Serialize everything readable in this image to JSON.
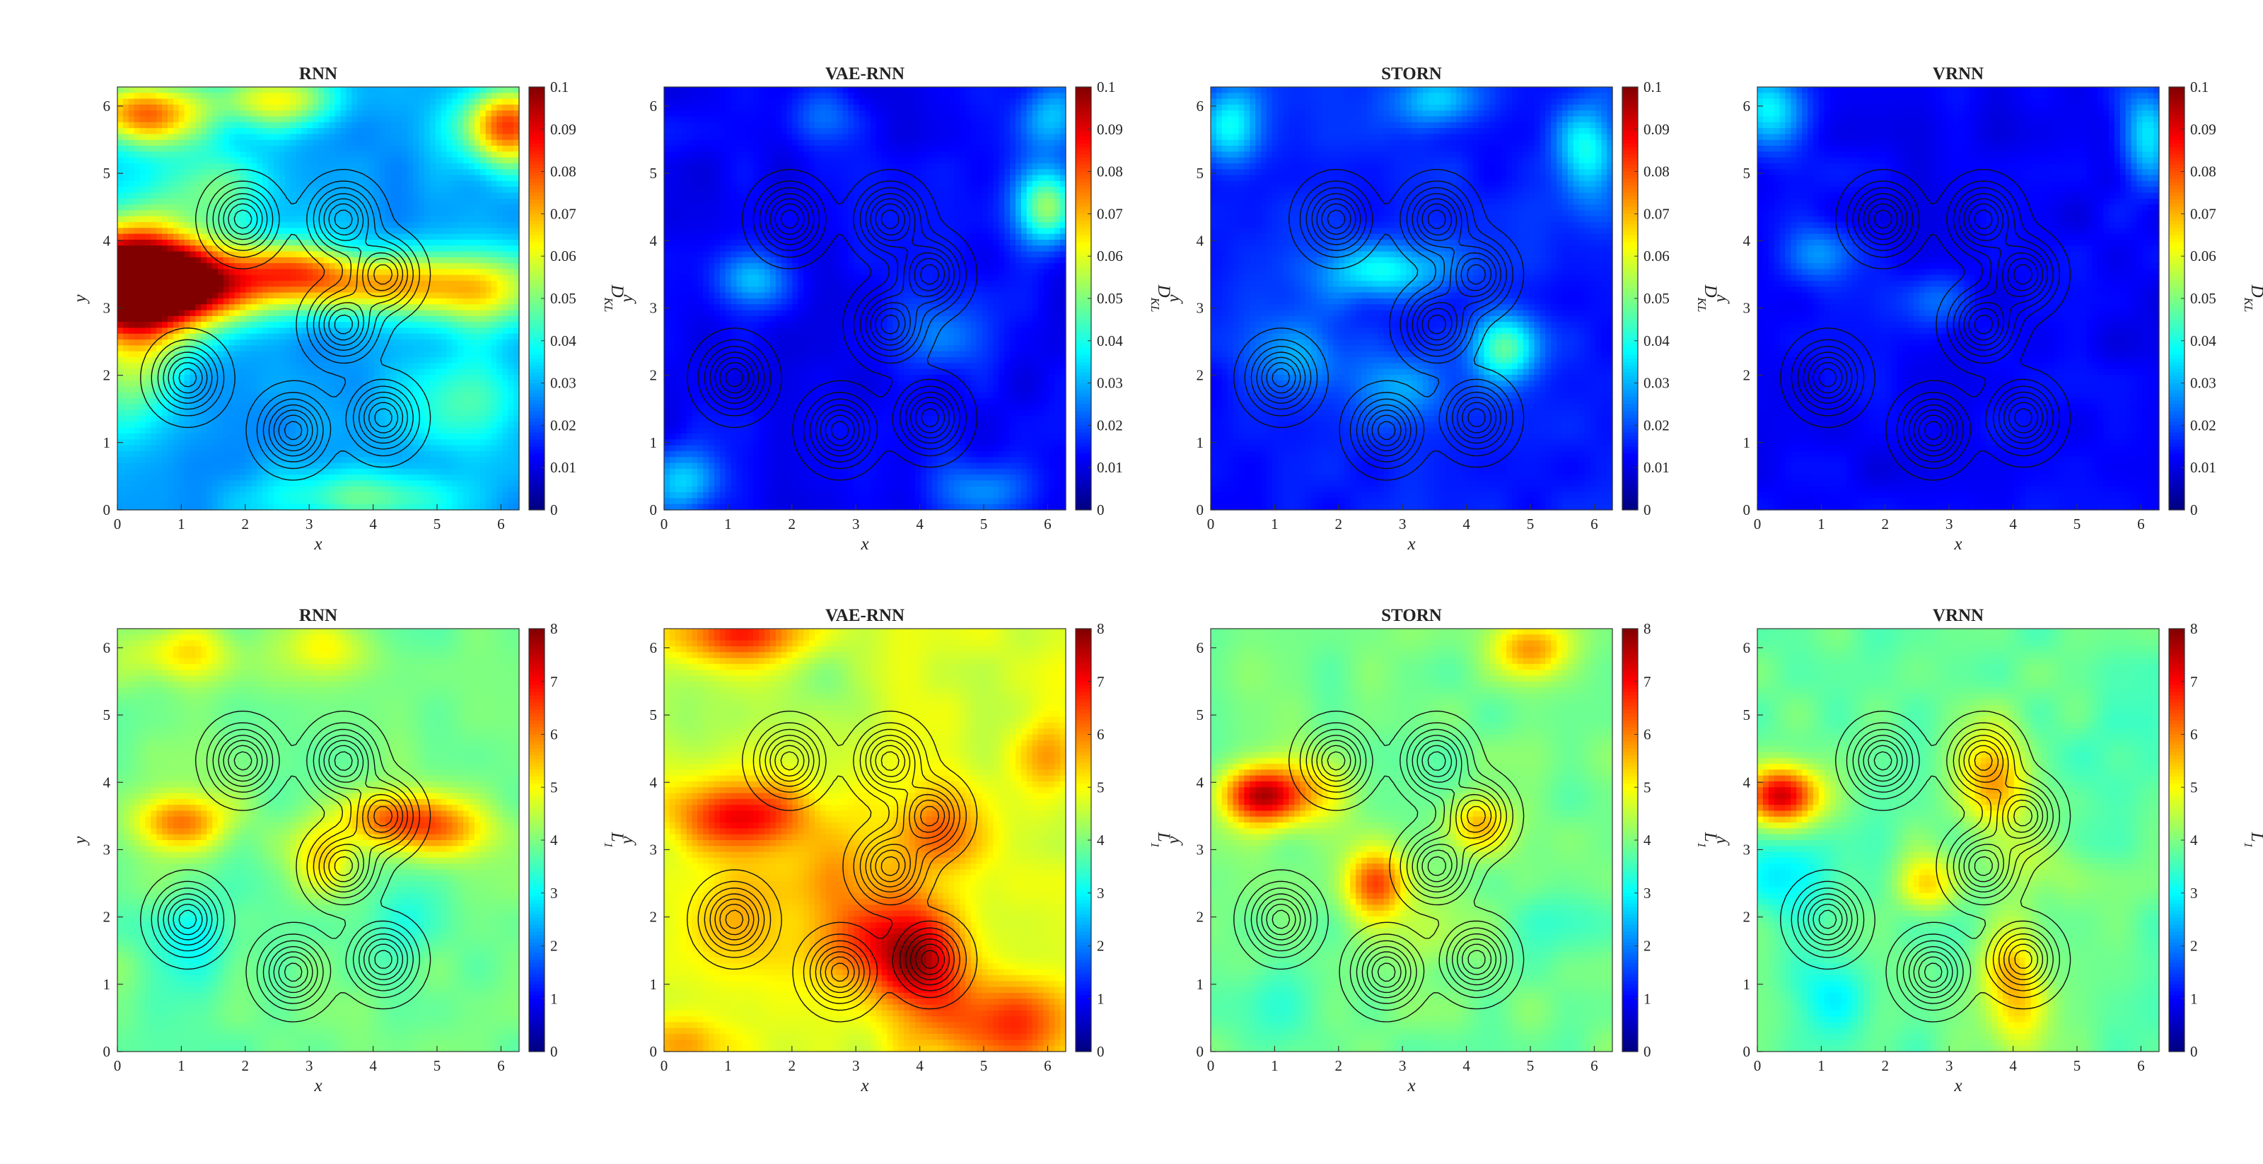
{
  "figure": {
    "panels": 8,
    "layout": "2 rows x 4 columns",
    "colormap": "jet",
    "overlay": "black contour lines of a 7-peak target density"
  },
  "chart_data": [
    {
      "type": "heatmap",
      "title": "RNN",
      "xlabel": "x",
      "ylabel": "y",
      "colorbar_label": "D_KL",
      "xlim": [
        0,
        6.283
      ],
      "ylim": [
        0,
        6.283
      ],
      "clim": [
        0,
        0.1
      ],
      "xticks": [
        "0",
        "1",
        "2",
        "3",
        "4",
        "5",
        "6"
      ],
      "yticks": [
        "0",
        "1",
        "2",
        "3",
        "4",
        "5",
        "6"
      ],
      "cticks": [
        "0",
        "0.01",
        "0.02",
        "0.03",
        "0.04",
        "0.05",
        "0.06",
        "0.07",
        "0.08",
        "0.09",
        "0.1"
      ],
      "blobs": [
        [
          0.2,
          3.4,
          0.75,
          0.6,
          0.09
        ],
        [
          1.2,
          3.35,
          0.9,
          0.4,
          0.055
        ],
        [
          2.7,
          3.6,
          0.6,
          0.3,
          0.03
        ],
        [
          4.0,
          3.35,
          1.0,
          0.32,
          0.04
        ],
        [
          5.8,
          3.25,
          0.8,
          0.4,
          0.03
        ],
        [
          0.4,
          5.9,
          0.7,
          0.35,
          0.05
        ],
        [
          2.5,
          6.1,
          0.6,
          0.3,
          0.035
        ],
        [
          6.1,
          5.7,
          0.5,
          0.4,
          0.055
        ],
        [
          0.2,
          2.0,
          0.5,
          0.6,
          0.02
        ],
        [
          5.5,
          1.6,
          0.7,
          0.5,
          0.015
        ],
        [
          1.5,
          4.8,
          0.6,
          0.4,
          0.02
        ],
        [
          3.8,
          0.2,
          1.0,
          0.3,
          0.02
        ]
      ],
      "background": 0.028
    },
    {
      "type": "heatmap",
      "title": "VAE-RNN",
      "xlabel": "x",
      "ylabel": "y",
      "colorbar_label": "D_KL",
      "xlim": [
        0,
        6.283
      ],
      "ylim": [
        0,
        6.283
      ],
      "clim": [
        0,
        0.1
      ],
      "xticks": [
        "0",
        "1",
        "2",
        "3",
        "4",
        "5",
        "6"
      ],
      "yticks": [
        "0",
        "1",
        "2",
        "3",
        "4",
        "5",
        "6"
      ],
      "cticks": [
        "0",
        "0.01",
        "0.02",
        "0.03",
        "0.04",
        "0.05",
        "0.06",
        "0.07",
        "0.08",
        "0.09",
        "0.1"
      ],
      "blobs": [
        [
          6.0,
          4.5,
          0.35,
          0.4,
          0.04
        ],
        [
          6.1,
          5.8,
          0.35,
          0.35,
          0.02
        ],
        [
          1.4,
          3.4,
          0.4,
          0.3,
          0.02
        ],
        [
          0.3,
          0.4,
          0.4,
          0.35,
          0.02
        ],
        [
          5.0,
          0.3,
          0.5,
          0.3,
          0.015
        ],
        [
          2.5,
          5.8,
          0.4,
          0.3,
          0.012
        ],
        [
          4.3,
          2.6,
          0.5,
          0.4,
          0.012
        ]
      ],
      "background": 0.012
    },
    {
      "type": "heatmap",
      "title": "STORN",
      "xlabel": "x",
      "ylabel": "y",
      "colorbar_label": "D_KL",
      "xlim": [
        0,
        6.283
      ],
      "ylim": [
        0,
        6.283
      ],
      "clim": [
        0,
        0.1
      ],
      "xticks": [
        "0",
        "1",
        "2",
        "3",
        "4",
        "5",
        "6"
      ],
      "yticks": [
        "0",
        "1",
        "2",
        "3",
        "4",
        "5",
        "6"
      ],
      "cticks": [
        "0",
        "0.01",
        "0.02",
        "0.03",
        "0.04",
        "0.05",
        "0.06",
        "0.07",
        "0.08",
        "0.09",
        "0.1"
      ],
      "blobs": [
        [
          2.7,
          3.55,
          0.7,
          0.3,
          0.025
        ],
        [
          4.6,
          2.4,
          0.35,
          0.35,
          0.03
        ],
        [
          0.3,
          5.7,
          0.35,
          0.4,
          0.025
        ],
        [
          5.9,
          5.3,
          0.35,
          0.5,
          0.025
        ],
        [
          3.5,
          6.1,
          0.5,
          0.3,
          0.02
        ],
        [
          1.4,
          2.3,
          0.5,
          0.4,
          0.015
        ],
        [
          3.0,
          1.8,
          0.5,
          0.4,
          0.012
        ]
      ],
      "background": 0.015
    },
    {
      "type": "heatmap",
      "title": "VRNN",
      "xlabel": "x",
      "ylabel": "y",
      "colorbar_label": "D_KL",
      "xlim": [
        0,
        6.283
      ],
      "ylim": [
        0,
        6.283
      ],
      "clim": [
        0,
        0.1
      ],
      "xticks": [
        "0",
        "1",
        "2",
        "3",
        "4",
        "5",
        "6"
      ],
      "yticks": [
        "0",
        "1",
        "2",
        "3",
        "4",
        "5",
        "6"
      ],
      "cticks": [
        "0",
        "0.01",
        "0.02",
        "0.03",
        "0.04",
        "0.05",
        "0.06",
        "0.07",
        "0.08",
        "0.09",
        "0.1"
      ],
      "blobs": [
        [
          0.2,
          5.9,
          0.4,
          0.4,
          0.025
        ],
        [
          6.1,
          5.6,
          0.3,
          0.5,
          0.025
        ],
        [
          1.0,
          3.8,
          0.4,
          0.3,
          0.015
        ],
        [
          2.7,
          3.1,
          0.4,
          0.3,
          0.012
        ]
      ],
      "background": 0.012
    },
    {
      "type": "heatmap",
      "title": "RNN",
      "xlabel": "x",
      "ylabel": "y",
      "colorbar_label": "L_1",
      "xlim": [
        0,
        6.283
      ],
      "ylim": [
        0,
        6.283
      ],
      "clim": [
        0,
        8
      ],
      "xticks": [
        "0",
        "1",
        "2",
        "3",
        "4",
        "5",
        "6"
      ],
      "yticks": [
        "0",
        "1",
        "2",
        "3",
        "4",
        "5",
        "6"
      ],
      "cticks": [
        "0",
        "1",
        "2",
        "3",
        "4",
        "5",
        "6",
        "7",
        "8"
      ],
      "blobs": [
        [
          1.0,
          3.4,
          0.5,
          0.3,
          2.2
        ],
        [
          4.3,
          3.45,
          0.6,
          0.3,
          2.4
        ],
        [
          5.2,
          3.3,
          0.5,
          0.3,
          1.3
        ],
        [
          3.2,
          2.8,
          0.35,
          0.35,
          1.3
        ],
        [
          1.0,
          5.9,
          0.6,
          0.3,
          1.3
        ],
        [
          3.3,
          6.0,
          0.5,
          0.3,
          1.0
        ],
        [
          1.2,
          1.6,
          0.5,
          0.5,
          -0.7
        ],
        [
          4.6,
          2.0,
          0.4,
          0.4,
          -0.5
        ]
      ],
      "background": 3.9
    },
    {
      "type": "heatmap",
      "title": "VAE-RNN",
      "xlabel": "x",
      "ylabel": "y",
      "colorbar_label": "L_1",
      "xlim": [
        0,
        6.283
      ],
      "ylim": [
        0,
        6.283
      ],
      "clim": [
        0,
        8
      ],
      "xticks": [
        "0",
        "1",
        "2",
        "3",
        "4",
        "5",
        "6"
      ],
      "yticks": [
        "0",
        "1",
        "2",
        "3",
        "4",
        "5",
        "6"
      ],
      "cticks": [
        "0",
        "1",
        "2",
        "3",
        "4",
        "5",
        "6",
        "7",
        "8"
      ],
      "blobs": [
        [
          1.2,
          3.5,
          0.7,
          0.35,
          2.4
        ],
        [
          4.0,
          1.4,
          0.5,
          0.6,
          2.6
        ],
        [
          5.3,
          0.4,
          0.8,
          0.5,
          2.0
        ],
        [
          3.1,
          1.6,
          0.6,
          0.5,
          1.5
        ],
        [
          4.3,
          3.3,
          0.5,
          0.5,
          1.4
        ],
        [
          1.2,
          6.2,
          0.7,
          0.3,
          2.2
        ],
        [
          2.8,
          2.7,
          0.5,
          0.5,
          0.9
        ],
        [
          1.2,
          1.9,
          0.6,
          0.6,
          1.0
        ],
        [
          0.2,
          0.1,
          0.5,
          0.3,
          1.2
        ],
        [
          6.0,
          4.4,
          0.3,
          0.5,
          0.9
        ],
        [
          0.5,
          5.0,
          0.4,
          0.4,
          -0.6
        ],
        [
          2.6,
          5.5,
          0.5,
          0.5,
          -0.5
        ]
      ],
      "background": 4.7
    },
    {
      "type": "heatmap",
      "title": "STORN",
      "xlabel": "x",
      "ylabel": "y",
      "colorbar_label": "L_1",
      "xlim": [
        0,
        6.283
      ],
      "ylim": [
        0,
        6.283
      ],
      "clim": [
        0,
        8
      ],
      "xticks": [
        "0",
        "1",
        "2",
        "3",
        "4",
        "5",
        "6"
      ],
      "yticks": [
        "0",
        "1",
        "2",
        "3",
        "4",
        "5",
        "6"
      ],
      "cticks": [
        "0",
        "1",
        "2",
        "3",
        "4",
        "5",
        "6",
        "7",
        "8"
      ],
      "blobs": [
        [
          0.8,
          3.8,
          0.45,
          0.3,
          3.4
        ],
        [
          2.6,
          2.5,
          0.35,
          0.35,
          2.4
        ],
        [
          5.0,
          6.0,
          0.4,
          0.3,
          2.0
        ],
        [
          4.2,
          3.4,
          0.35,
          0.3,
          1.6
        ],
        [
          1.6,
          3.9,
          0.5,
          0.4,
          0.9
        ],
        [
          3.5,
          1.8,
          0.5,
          0.4,
          0.6
        ],
        [
          1.0,
          0.7,
          0.5,
          0.5,
          -0.6
        ],
        [
          5.5,
          2.0,
          0.5,
          0.5,
          -0.4
        ]
      ],
      "background": 3.9
    },
    {
      "type": "heatmap",
      "title": "VRNN",
      "xlabel": "x",
      "ylabel": "y",
      "colorbar_label": "L_1",
      "xlim": [
        0,
        6.283
      ],
      "ylim": [
        0,
        6.283
      ],
      "clim": [
        0,
        8
      ],
      "xticks": [
        "0",
        "1",
        "2",
        "3",
        "4",
        "5",
        "6"
      ],
      "yticks": [
        "0",
        "1",
        "2",
        "3",
        "4",
        "5",
        "6"
      ],
      "cticks": [
        "0",
        "1",
        "2",
        "3",
        "4",
        "5",
        "6",
        "7",
        "8"
      ],
      "blobs": [
        [
          0.4,
          3.8,
          0.4,
          0.3,
          3.6
        ],
        [
          3.7,
          4.1,
          0.35,
          0.5,
          2.0
        ],
        [
          4.0,
          1.0,
          0.35,
          0.7,
          1.8
        ],
        [
          2.7,
          2.5,
          0.35,
          0.3,
          1.4
        ],
        [
          4.2,
          2.9,
          0.5,
          0.4,
          0.8
        ],
        [
          0.5,
          2.6,
          0.5,
          0.4,
          -1.0
        ],
        [
          1.2,
          0.8,
          0.4,
          0.4,
          -0.9
        ],
        [
          5.5,
          4.4,
          0.5,
          0.5,
          -0.3
        ]
      ],
      "background": 3.8
    }
  ],
  "contour_peaks": [
    [
      1.963,
      4.32
    ],
    [
      3.534,
      4.32
    ],
    [
      4.16,
      3.5
    ],
    [
      3.534,
      2.75
    ],
    [
      1.1,
      1.963
    ],
    [
      2.75,
      1.18
    ],
    [
      4.16,
      1.37
    ]
  ]
}
